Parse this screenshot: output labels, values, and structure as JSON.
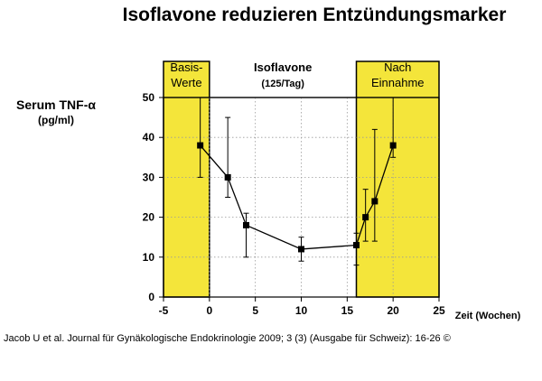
{
  "figure": {
    "title": "Isoflavone reduzieren Entzündungsmarker",
    "citation": "Jacob U et al. Journal für Gynäkologische Endokrinologie 2009; 3 (3) (Ausgabe für Schweiz): 16-26 ©"
  },
  "colors": {
    "panel": "#f4e53a",
    "line": "#000000",
    "grid": "#9a9a9a",
    "text": "#000000"
  },
  "chart_data": {
    "type": "line",
    "title": "Isoflavone reduzieren Entzündungsmarker",
    "ylabel": "Serum TNF-α",
    "yunit": "(pg/ml)",
    "xlabel": "Zeit (Wochen)",
    "xlim": [
      -5,
      25
    ],
    "ylim": [
      0,
      50
    ],
    "xticks": [
      -5,
      0,
      5,
      10,
      15,
      20,
      25
    ],
    "yticks": [
      0,
      10,
      20,
      30,
      40,
      50
    ],
    "grid": true,
    "phases": [
      {
        "label_lines": [
          "Basis-",
          "Werte"
        ],
        "x_range": [
          -5,
          0
        ],
        "highlight": true
      },
      {
        "label_lines": [
          "Isoflavone",
          "(125/Tag)"
        ],
        "x_range": [
          0,
          16
        ],
        "highlight": false
      },
      {
        "label_lines": [
          "Nach",
          "Einnahme"
        ],
        "x_range": [
          16,
          25
        ],
        "highlight": true
      }
    ],
    "series": [
      {
        "points": [
          {
            "x": -1,
            "y": 38,
            "low": 30,
            "high": 50
          },
          {
            "x": 2,
            "y": 30,
            "low": 25,
            "high": 45
          },
          {
            "x": 4,
            "y": 18,
            "low": 10,
            "high": 21
          },
          {
            "x": 10,
            "y": 12,
            "low": 9,
            "high": 15
          },
          {
            "x": 16,
            "y": 13,
            "low": 8,
            "high": 16
          },
          {
            "x": 17,
            "y": 20,
            "low": 14,
            "high": 27
          },
          {
            "x": 18,
            "y": 24,
            "low": 14,
            "high": 42
          },
          {
            "x": 20,
            "y": 38,
            "low": 35,
            "high": 50
          }
        ]
      }
    ]
  }
}
